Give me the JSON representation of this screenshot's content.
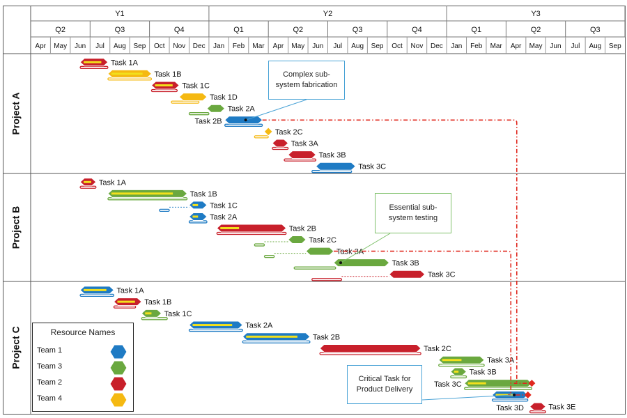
{
  "chart_data": {
    "type": "gantt",
    "time_axis": {
      "years": [
        {
          "label": "Y1",
          "start": 0,
          "end": 9
        },
        {
          "label": "Y2",
          "start": 9,
          "end": 21
        },
        {
          "label": "Y3",
          "start": 21,
          "end": 30
        }
      ],
      "quarters": [
        {
          "label": "Q2",
          "start": 0,
          "end": 3
        },
        {
          "label": "Q3",
          "start": 3,
          "end": 6
        },
        {
          "label": "Q4",
          "start": 6,
          "end": 9
        },
        {
          "label": "Q1",
          "start": 9,
          "end": 12
        },
        {
          "label": "Q2",
          "start": 12,
          "end": 15
        },
        {
          "label": "Q3",
          "start": 15,
          "end": 18
        },
        {
          "label": "Q4",
          "start": 18,
          "end": 21
        },
        {
          "label": "Q1",
          "start": 21,
          "end": 24
        },
        {
          "label": "Q2",
          "start": 24,
          "end": 27
        },
        {
          "label": "Q3",
          "start": 27,
          "end": 30
        }
      ],
      "months": [
        "Apr",
        "May",
        "Jun",
        "Jul",
        "Aug",
        "Sep",
        "Oct",
        "Nov",
        "Dec",
        "Jan",
        "Feb",
        "Mar",
        "Apr",
        "May",
        "Jun",
        "Jul",
        "Aug",
        "Sep",
        "Oct",
        "Nov",
        "Dec",
        "Jan",
        "Feb",
        "Mar",
        "Apr",
        "May",
        "Jun",
        "Jul",
        "Aug",
        "Sep"
      ]
    },
    "projects": [
      {
        "name": "Project A",
        "tasks": [
          {
            "label": "Task 1A",
            "team": "Team 2",
            "start": 2.5,
            "end": 3.9,
            "progress": 0.85,
            "baseline": [
              2.5,
              3.9
            ]
          },
          {
            "label": "Task 1B",
            "team": "Team 4",
            "start": 3.9,
            "end": 6.1,
            "progress": 0.85,
            "baseline": [
              3.9,
              6.1
            ]
          },
          {
            "label": "Task 1C",
            "team": "Team 2",
            "start": 6.1,
            "end": 7.5,
            "progress": 0.85,
            "baseline": [
              6.1,
              7.4
            ]
          },
          {
            "label": "Task 1D",
            "team": "Team 4",
            "start": 7.5,
            "end": 8.9,
            "progress": 0.0,
            "baseline": [
              7.1,
              8.5
            ]
          },
          {
            "label": "Task 2A",
            "team": "Team 3",
            "start": 8.9,
            "end": 9.8,
            "progress": 0.0,
            "baseline": [
              8.0,
              9.0
            ]
          },
          {
            "label": "Task 2B",
            "team": "Team 1",
            "start": 9.8,
            "end": 11.7,
            "progress": 0.0,
            "baseline": [
              9.8,
              11.7
            ],
            "label_side": "left"
          },
          {
            "label": "Task 2C",
            "team": "Team 4",
            "start": 11.8,
            "end": 12.2,
            "progress": 0.0,
            "baseline": [
              11.3,
              12.0
            ],
            "milestone": true
          },
          {
            "label": "Task 3A",
            "team": "Team 2",
            "start": 12.2,
            "end": 13.0,
            "progress": 0.0,
            "baseline": [
              12.2,
              13.0
            ]
          },
          {
            "label": "Task 3B",
            "team": "Team 2",
            "start": 13.0,
            "end": 14.4,
            "progress": 0.0,
            "baseline": [
              12.8,
              14.4
            ]
          },
          {
            "label": "Task 3C",
            "team": "Team 1",
            "start": 14.4,
            "end": 16.4,
            "progress": 0.0,
            "baseline": [
              14.2,
              16.2
            ]
          }
        ]
      },
      {
        "name": "Project B",
        "tasks": [
          {
            "label": "Task 1A",
            "team": "Team 2",
            "start": 2.5,
            "end": 3.3,
            "progress": 0.85,
            "baseline": [
              2.5,
              3.3
            ]
          },
          {
            "label": "Task 1B",
            "team": "Team 3",
            "start": 3.9,
            "end": 7.9,
            "progress": 0.85,
            "baseline": [
              3.9,
              7.9
            ]
          },
          {
            "label": "Task 1C",
            "team": "Team 1",
            "start": 8.0,
            "end": 8.9,
            "progress": 0.5,
            "baseline": [
              6.5,
              7.0
            ]
          },
          {
            "label": "Task 2A",
            "team": "Team 1",
            "start": 8.0,
            "end": 8.9,
            "progress": 0.5,
            "baseline": [
              8.0,
              8.9
            ]
          },
          {
            "label": "Task 2B",
            "team": "Team 2",
            "start": 9.4,
            "end": 12.9,
            "progress": 0.3,
            "baseline": [
              9.4,
              12.9
            ]
          },
          {
            "label": "Task 2C",
            "team": "Team 3",
            "start": 13.0,
            "end": 13.9,
            "progress": 0.0,
            "baseline": [
              11.3,
              11.8
            ]
          },
          {
            "label": "Task 3A",
            "team": "Team 3",
            "start": 13.9,
            "end": 15.3,
            "progress": 0.0,
            "baseline": [
              11.8,
              12.3
            ]
          },
          {
            "label": "Task 3B",
            "team": "Team 3",
            "start": 15.3,
            "end": 18.1,
            "progress": 0.0,
            "baseline": [
              13.3,
              15.4
            ]
          },
          {
            "label": "Task 3C",
            "team": "Team 2",
            "start": 18.1,
            "end": 19.9,
            "progress": 0.0,
            "baseline": [
              14.2,
              15.7
            ]
          }
        ]
      },
      {
        "name": "Project C",
        "tasks": [
          {
            "label": "Task 1A",
            "team": "Team 1",
            "start": 2.5,
            "end": 4.2,
            "progress": 0.85,
            "baseline": [
              2.5,
              4.2
            ]
          },
          {
            "label": "Task 1B",
            "team": "Team 2",
            "start": 4.2,
            "end": 5.6,
            "progress": 0.85,
            "baseline": [
              4.2,
              5.3
            ]
          },
          {
            "label": "Task 1C",
            "team": "Team 3",
            "start": 5.6,
            "end": 6.6,
            "progress": 0.5,
            "baseline": [
              5.6,
              6.9
            ]
          },
          {
            "label": "Task 2A",
            "team": "Team 1",
            "start": 8.0,
            "end": 10.7,
            "progress": 0.85,
            "baseline": [
              8.0,
              10.7
            ]
          },
          {
            "label": "Task 2B",
            "team": "Team 1",
            "start": 10.7,
            "end": 14.1,
            "progress": 0.85,
            "baseline": [
              10.7,
              14.1
            ]
          },
          {
            "label": "Task 2C",
            "team": "Team 2",
            "start": 14.6,
            "end": 19.7,
            "progress": 0.0,
            "baseline": [
              14.6,
              19.7
            ]
          },
          {
            "label": "Task 3A",
            "team": "Team 3",
            "start": 20.6,
            "end": 22.9,
            "progress": 0.5,
            "baseline": [
              20.6,
              22.9
            ]
          },
          {
            "label": "Task 3B",
            "team": "Team 3",
            "start": 21.2,
            "end": 22.0,
            "progress": 0.5,
            "baseline": [
              21.2,
              22.0
            ]
          },
          {
            "label": "Task 3C",
            "team": "Team 3",
            "start": 21.9,
            "end": 25.3,
            "progress": 0.3,
            "baseline": [
              21.9,
              25.3
            ],
            "label_side": "left",
            "critical_marker": true
          },
          {
            "label": "Task 3D",
            "team": "Team 1",
            "start": 23.3,
            "end": 25.1,
            "progress": 0.6,
            "baseline": [
              23.3,
              25.1
            ],
            "label_side": "below",
            "critical_marker": true
          },
          {
            "label": "Task 3E",
            "team": "Team 2",
            "start": 25.2,
            "end": 26.0,
            "progress": 0.0,
            "baseline": [
              25.2,
              26.0
            ]
          }
        ]
      }
    ],
    "links": [
      {
        "from": [
          "Project A",
          "Task 2B"
        ],
        "to": [
          "Project C",
          "Task 3C"
        ],
        "style": "dash-dot",
        "color": "#e0281e"
      },
      {
        "from": [
          "Project B",
          "Task 3A"
        ],
        "to": [
          "Project C",
          "Task 3D"
        ],
        "style": "dash-dot",
        "color": "#e0281e"
      }
    ],
    "callouts": [
      {
        "text": "Complex sub-system fabrication",
        "style": "blue",
        "anchor": [
          "Project A",
          "Task 2B"
        ]
      },
      {
        "text": "Essential sub-system testing",
        "style": "green",
        "anchor": [
          "Project B",
          "Task 3B"
        ]
      },
      {
        "text": "Critical Task for Product Delivery",
        "style": "blue",
        "anchor": [
          "Project C",
          "Task 3D"
        ]
      }
    ],
    "legend": {
      "title": "Resource Names",
      "items": [
        {
          "name": "Team 1",
          "color": "#1f7bc4"
        },
        {
          "name": "Team 3",
          "color": "#6aa83f"
        },
        {
          "name": "Team 2",
          "color": "#c8202b"
        },
        {
          "name": "Team 4",
          "color": "#f5b912"
        }
      ]
    },
    "colors": {
      "Team 1": "#1f7bc4",
      "Team 2": "#c8202b",
      "Team 3": "#6aa83f",
      "Team 4": "#f5b912",
      "progress": "#f2e01c",
      "link": "#e0281e",
      "grid": "#888888"
    }
  }
}
